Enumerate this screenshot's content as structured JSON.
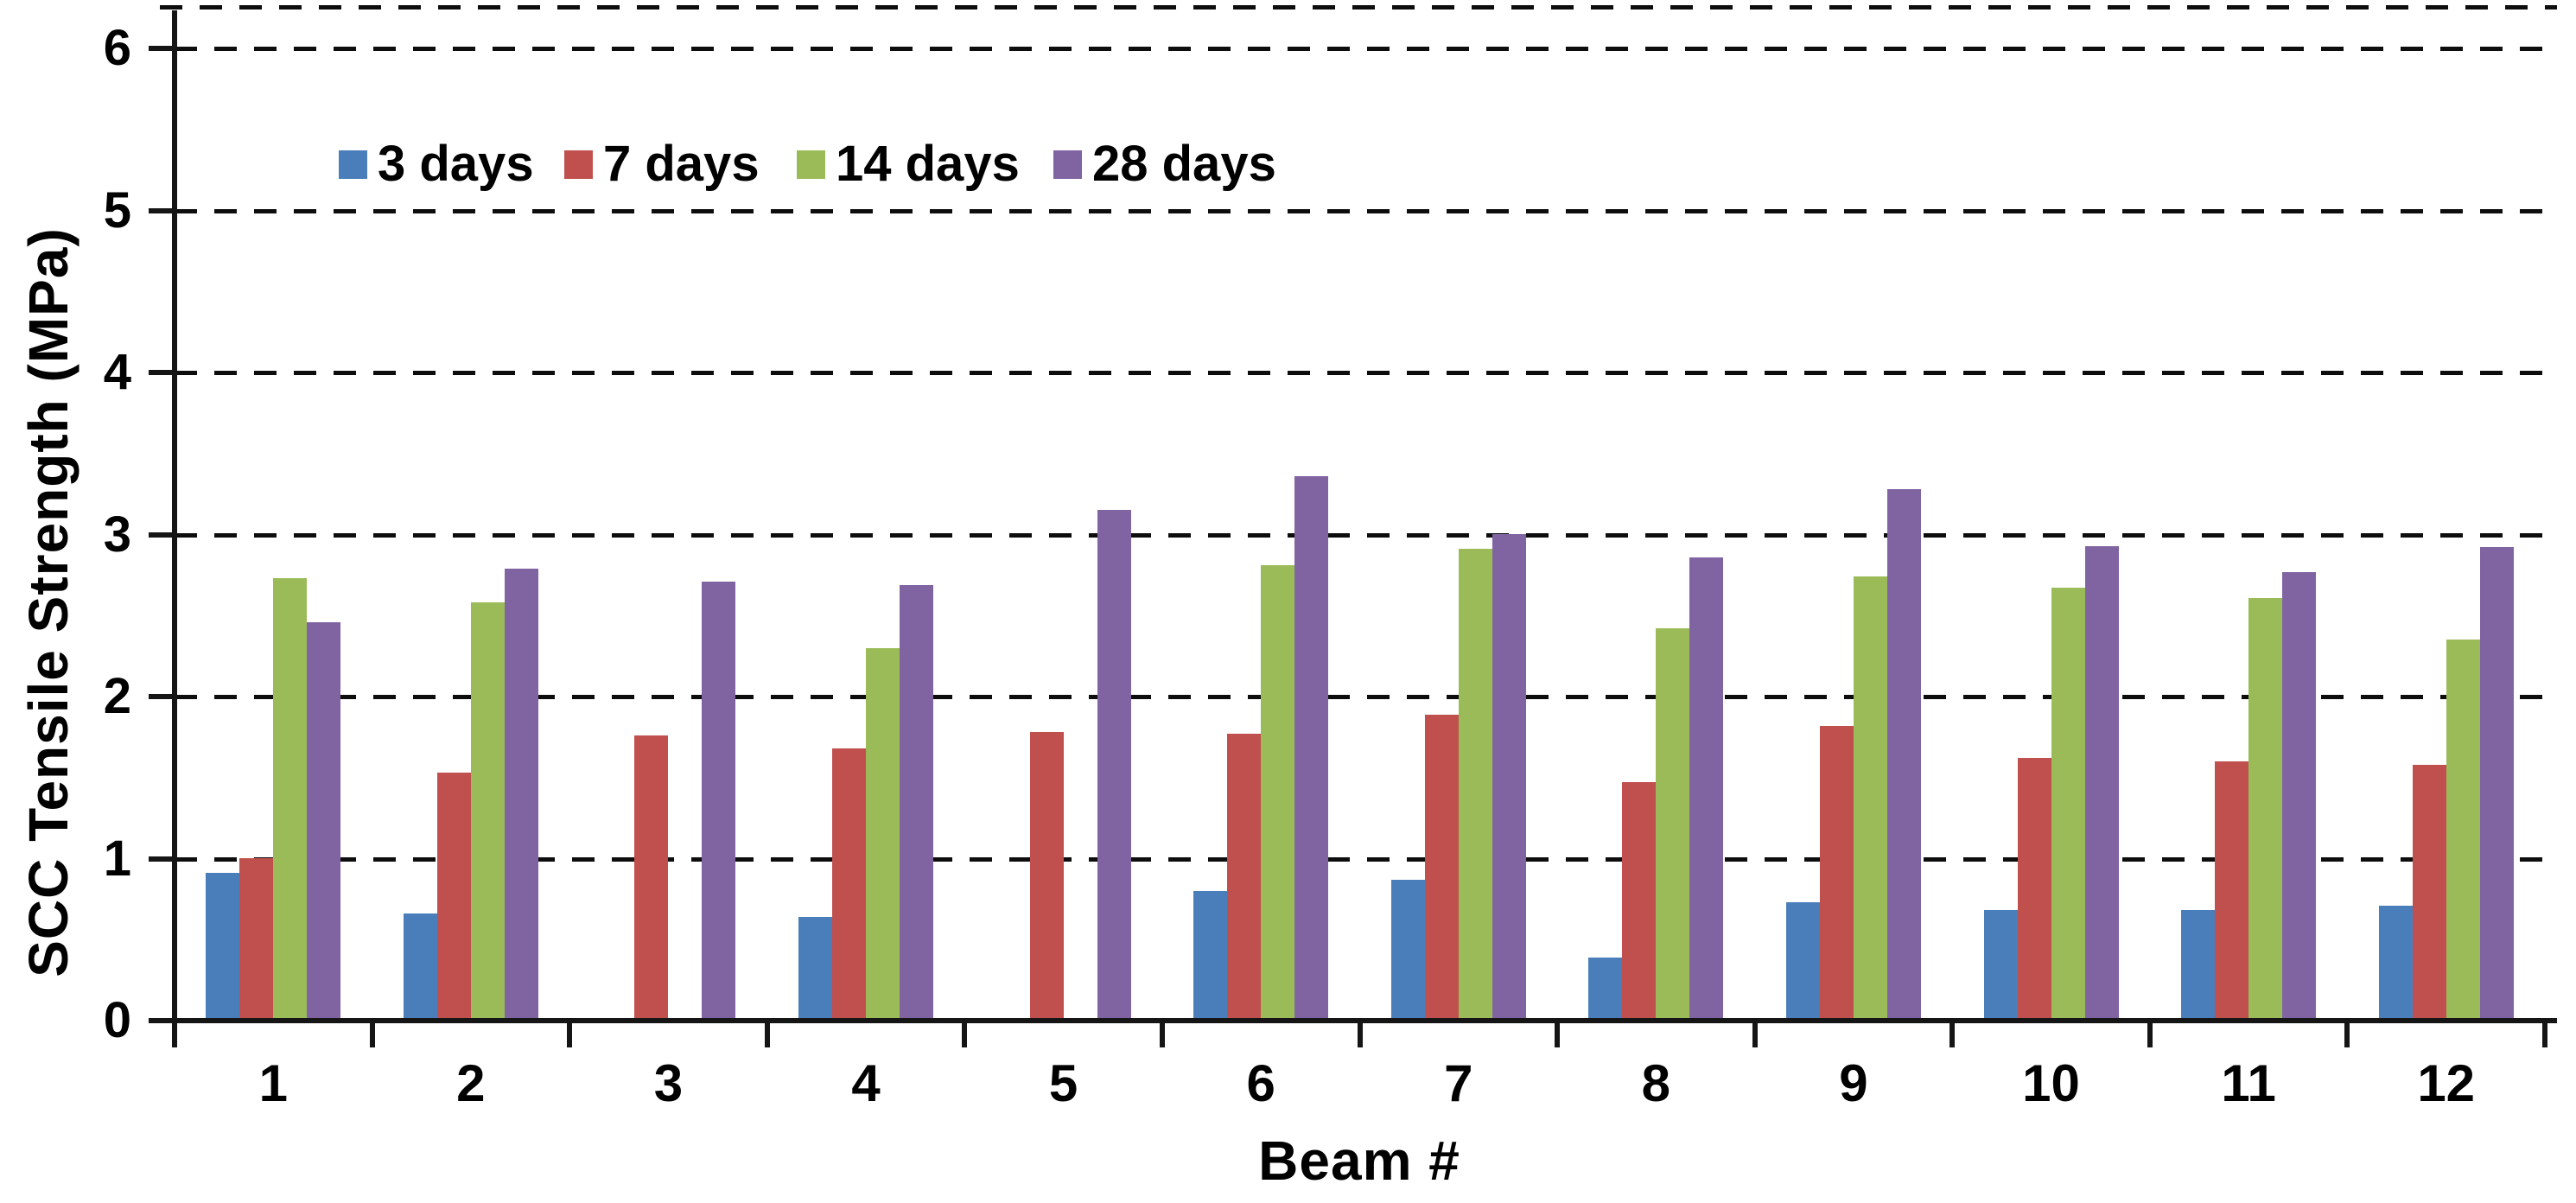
{
  "chart_data": {
    "type": "bar",
    "title": "",
    "xlabel": "Beam #",
    "ylabel": "SCC Tensile Strength (MPa)",
    "ylim": [
      0,
      6
    ],
    "yticks": [
      0,
      1,
      2,
      3,
      4,
      5,
      6
    ],
    "grid": "dashed horizontal, black",
    "legend_position": "top-left inside plot",
    "categories": [
      "1",
      "2",
      "3",
      "4",
      "5",
      "6",
      "7",
      "8",
      "9",
      "10",
      "11",
      "12"
    ],
    "series": [
      {
        "name": "3 days",
        "color": "#4A7EBB",
        "values": [
          0.91,
          0.66,
          null,
          0.64,
          null,
          0.8,
          0.87,
          0.39,
          0.73,
          0.68,
          0.68,
          0.71
        ]
      },
      {
        "name": "7 days",
        "color": "#C0504D",
        "values": [
          1.0,
          1.53,
          1.76,
          1.68,
          1.78,
          1.77,
          1.89,
          1.47,
          1.82,
          1.62,
          1.6,
          1.58
        ]
      },
      {
        "name": "14 days",
        "color": "#9BBB59",
        "values": [
          2.73,
          2.58,
          null,
          2.3,
          null,
          2.81,
          2.91,
          2.42,
          2.74,
          2.67,
          2.61,
          2.35
        ]
      },
      {
        "name": "28 days",
        "color": "#8064A2",
        "values": [
          2.46,
          2.79,
          2.71,
          2.69,
          3.15,
          3.36,
          3.0,
          2.86,
          3.28,
          2.93,
          2.77,
          2.92
        ]
      }
    ]
  }
}
